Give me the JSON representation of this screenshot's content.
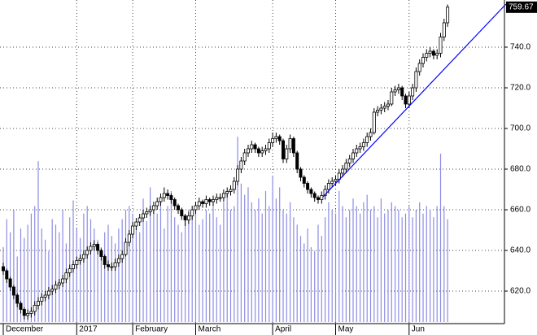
{
  "chart_data": {
    "type": "candlestick",
    "ohlc": [
      [
        632,
        634,
        628,
        630
      ],
      [
        630,
        631,
        624,
        626
      ],
      [
        626,
        627,
        620,
        622
      ],
      [
        622,
        623,
        616,
        618
      ],
      [
        618,
        619,
        612,
        614
      ],
      [
        614,
        615,
        609,
        611
      ],
      [
        611,
        612,
        606,
        608
      ],
      [
        608,
        611,
        606,
        609
      ],
      [
        609,
        612,
        607,
        610
      ],
      [
        610,
        615,
        608,
        613
      ],
      [
        613,
        617,
        611,
        615
      ],
      [
        615,
        619,
        613,
        617
      ],
      [
        617,
        620,
        615,
        618
      ],
      [
        618,
        622,
        616,
        620
      ],
      [
        620,
        623,
        618,
        621
      ],
      [
        621,
        625,
        619,
        623
      ],
      [
        623,
        626,
        621,
        624
      ],
      [
        624,
        628,
        622,
        626
      ],
      [
        626,
        631,
        624,
        629
      ],
      [
        629,
        633,
        627,
        631
      ],
      [
        631,
        635,
        629,
        633
      ],
      [
        633,
        637,
        631,
        635
      ],
      [
        635,
        638,
        633,
        636
      ],
      [
        636,
        640,
        634,
        638
      ],
      [
        638,
        642,
        636,
        640
      ],
      [
        640,
        644,
        638,
        642
      ],
      [
        642,
        645,
        640,
        643
      ],
      [
        643,
        644,
        638,
        640
      ],
      [
        640,
        641,
        635,
        637
      ],
      [
        637,
        638,
        631,
        633
      ],
      [
        633,
        635,
        630,
        632
      ],
      [
        632,
        634,
        630,
        632
      ],
      [
        632,
        636,
        630,
        634
      ],
      [
        634,
        638,
        632,
        636
      ],
      [
        636,
        640,
        634,
        638
      ],
      [
        638,
        646,
        637,
        644
      ],
      [
        644,
        650,
        642,
        648
      ],
      [
        648,
        654,
        646,
        652
      ],
      [
        652,
        656,
        650,
        654
      ],
      [
        654,
        658,
        652,
        656
      ],
      [
        656,
        660,
        654,
        658
      ],
      [
        658,
        661,
        656,
        659
      ],
      [
        659,
        662,
        657,
        660
      ],
      [
        660,
        664,
        658,
        662
      ],
      [
        662,
        666,
        660,
        664
      ],
      [
        664,
        668,
        662,
        666
      ],
      [
        666,
        671,
        664,
        668
      ],
      [
        668,
        670,
        665,
        667
      ],
      [
        667,
        668,
        663,
        665
      ],
      [
        665,
        666,
        660,
        662
      ],
      [
        662,
        663,
        658,
        660
      ],
      [
        660,
        661,
        655,
        657
      ],
      [
        657,
        658,
        652,
        655
      ],
      [
        655,
        659,
        653,
        657
      ],
      [
        657,
        662,
        655,
        660
      ],
      [
        660,
        664,
        658,
        662
      ],
      [
        662,
        666,
        660,
        664
      ],
      [
        664,
        665,
        661,
        663
      ],
      [
        663,
        667,
        661,
        665
      ],
      [
        665,
        666,
        662,
        664
      ],
      [
        664,
        667,
        662,
        665
      ],
      [
        665,
        668,
        663,
        666
      ],
      [
        666,
        668,
        664,
        666
      ],
      [
        666,
        670,
        664,
        668
      ],
      [
        668,
        671,
        666,
        669
      ],
      [
        669,
        672,
        667,
        670
      ],
      [
        670,
        676,
        668,
        674
      ],
      [
        674,
        682,
        672,
        680
      ],
      [
        680,
        686,
        678,
        684
      ],
      [
        684,
        690,
        682,
        688
      ],
      [
        688,
        692,
        686,
        690
      ],
      [
        690,
        694,
        688,
        692
      ],
      [
        692,
        693,
        688,
        690
      ],
      [
        690,
        691,
        686,
        688
      ],
      [
        688,
        691,
        686,
        689
      ],
      [
        689,
        692,
        687,
        690
      ],
      [
        690,
        695,
        688,
        693
      ],
      [
        693,
        698,
        691,
        695
      ],
      [
        695,
        698,
        693,
        696
      ],
      [
        696,
        697,
        692,
        694
      ],
      [
        694,
        695,
        683,
        685
      ],
      [
        685,
        692,
        683,
        690
      ],
      [
        690,
        697,
        688,
        695
      ],
      [
        695,
        696,
        686,
        688
      ],
      [
        688,
        689,
        678,
        680
      ],
      [
        680,
        681,
        674,
        676
      ],
      [
        676,
        677,
        671,
        673
      ],
      [
        673,
        674,
        668,
        670
      ],
      [
        670,
        671,
        666,
        668
      ],
      [
        668,
        669,
        664,
        666
      ],
      [
        666,
        667,
        663,
        665
      ],
      [
        665,
        669,
        663,
        667
      ],
      [
        667,
        672,
        665,
        670
      ],
      [
        670,
        675,
        668,
        673
      ],
      [
        673,
        676,
        671,
        674
      ],
      [
        674,
        677,
        672,
        675
      ],
      [
        675,
        680,
        673,
        678
      ],
      [
        678,
        682,
        676,
        680
      ],
      [
        680,
        685,
        678,
        683
      ],
      [
        683,
        687,
        681,
        685
      ],
      [
        685,
        690,
        683,
        688
      ],
      [
        688,
        692,
        686,
        690
      ],
      [
        690,
        693,
        688,
        691
      ],
      [
        691,
        695,
        689,
        693
      ],
      [
        693,
        698,
        691,
        696
      ],
      [
        696,
        700,
        694,
        698
      ],
      [
        698,
        710,
        697,
        708
      ],
      [
        708,
        711,
        706,
        709
      ],
      [
        709,
        712,
        707,
        710
      ],
      [
        710,
        713,
        708,
        711
      ],
      [
        711,
        714,
        709,
        712
      ],
      [
        712,
        720,
        711,
        718
      ],
      [
        718,
        721,
        716,
        719
      ],
      [
        719,
        722,
        717,
        720
      ],
      [
        720,
        721,
        714,
        716
      ],
      [
        716,
        717,
        710,
        712
      ],
      [
        712,
        718,
        710,
        716
      ],
      [
        716,
        722,
        714,
        720
      ],
      [
        720,
        730,
        718,
        728
      ],
      [
        728,
        734,
        726,
        732
      ],
      [
        732,
        737,
        730,
        735
      ],
      [
        735,
        739,
        733,
        737
      ],
      [
        737,
        740,
        735,
        738
      ],
      [
        738,
        739,
        734,
        736
      ],
      [
        736,
        739,
        734,
        737
      ],
      [
        737,
        747,
        735,
        745
      ],
      [
        745,
        754,
        743,
        752
      ],
      [
        752,
        761,
        750,
        759.67
      ]
    ],
    "volume": [
      40,
      55,
      48,
      60,
      35,
      50,
      45,
      52,
      58,
      62,
      86,
      50,
      44,
      38,
      55,
      52,
      48,
      60,
      42,
      56,
      65,
      50,
      45,
      58,
      62,
      55,
      50,
      44,
      40,
      48,
      52,
      46,
      42,
      50,
      55,
      60,
      62,
      58,
      50,
      48,
      66,
      54,
      72,
      60,
      58,
      65,
      50,
      62,
      70,
      56,
      52,
      48,
      55,
      60,
      58,
      64,
      52,
      55,
      60,
      58,
      63,
      56,
      52,
      64,
      70,
      60,
      62,
      99,
      74,
      68,
      72,
      64,
      60,
      66,
      58,
      70,
      62,
      78,
      66,
      72,
      60,
      58,
      64,
      56,
      52,
      46,
      42,
      50,
      40,
      38,
      52,
      46,
      56,
      64,
      60,
      58,
      70,
      62,
      56,
      60,
      66,
      62,
      58,
      64,
      68,
      60,
      62,
      56,
      66,
      58,
      60,
      64,
      62,
      60,
      56,
      58,
      62,
      56,
      60,
      64,
      58,
      62,
      60,
      56,
      62,
      90,
      62,
      55
    ],
    "vlim": [
      0,
      100
    ],
    "ylim": [
      605.2,
      763.2
    ],
    "yticks": [
      {
        "value": 620,
        "label": "620.0"
      },
      {
        "value": 640,
        "label": "640.0"
      },
      {
        "value": 660,
        "label": "660.0"
      },
      {
        "value": 680,
        "label": "680.0"
      },
      {
        "value": 700,
        "label": "700.0"
      },
      {
        "value": 720,
        "label": "720.0"
      },
      {
        "value": 740,
        "label": "740.0"
      }
    ],
    "xticks": [
      {
        "value": 0,
        "label": "December"
      },
      {
        "value": 21,
        "label": "2017"
      },
      {
        "value": 37,
        "label": "February"
      },
      {
        "value": 55,
        "label": "March"
      },
      {
        "value": 77,
        "label": "April"
      },
      {
        "value": 95,
        "label": "May"
      },
      {
        "value": 116,
        "label": "Jun"
      }
    ],
    "trendline": {
      "x": [
        91.4,
        143.7
      ],
      "y": [
        666.4,
        761.2
      ],
      "color": "#0000ff"
    },
    "up_color": "#ffffff",
    "down_color": "#000000",
    "volume_color": "#8c8ce6",
    "grid": true
  }
}
